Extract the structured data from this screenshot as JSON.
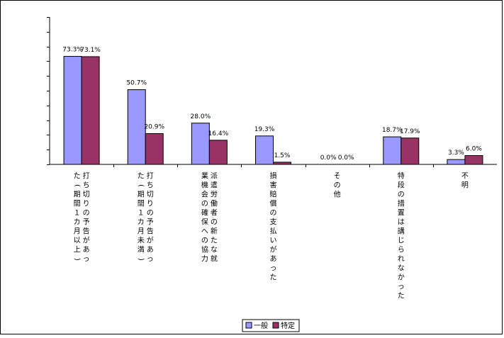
{
  "chart_data": {
    "type": "bar",
    "categories": [
      "打ち切りの予告があった（期間１カ月以上）",
      "打ち切りの予告があった（期間１カ月未満）",
      "派遣労働者の新たな就業機会の確保への協力",
      "損害賠償の支払いがあった",
      "その他",
      "特段の措置は講じられなかった",
      "不明"
    ],
    "series": [
      {
        "name": "一般",
        "values": [
          73.3,
          50.7,
          28.0,
          19.3,
          0.0,
          18.7,
          3.3
        ],
        "labels": [
          "73.3%",
          "50.7%",
          "28.0%",
          "19.3%",
          "0.0%",
          "18.7%",
          "3.3%"
        ],
        "color": "#9999ff"
      },
      {
        "name": "特定",
        "values": [
          73.1,
          20.9,
          16.4,
          1.5,
          0.0,
          17.9,
          6.0
        ],
        "labels": [
          "73.1%",
          "20.9%",
          "16.4%",
          "1.5%",
          "0.0%",
          "17.9%",
          "6.0%"
        ],
        "color": "#993366"
      }
    ],
    "ylim": [
      0,
      100
    ],
    "grid": false,
    "legend_position": "bottom-center"
  }
}
